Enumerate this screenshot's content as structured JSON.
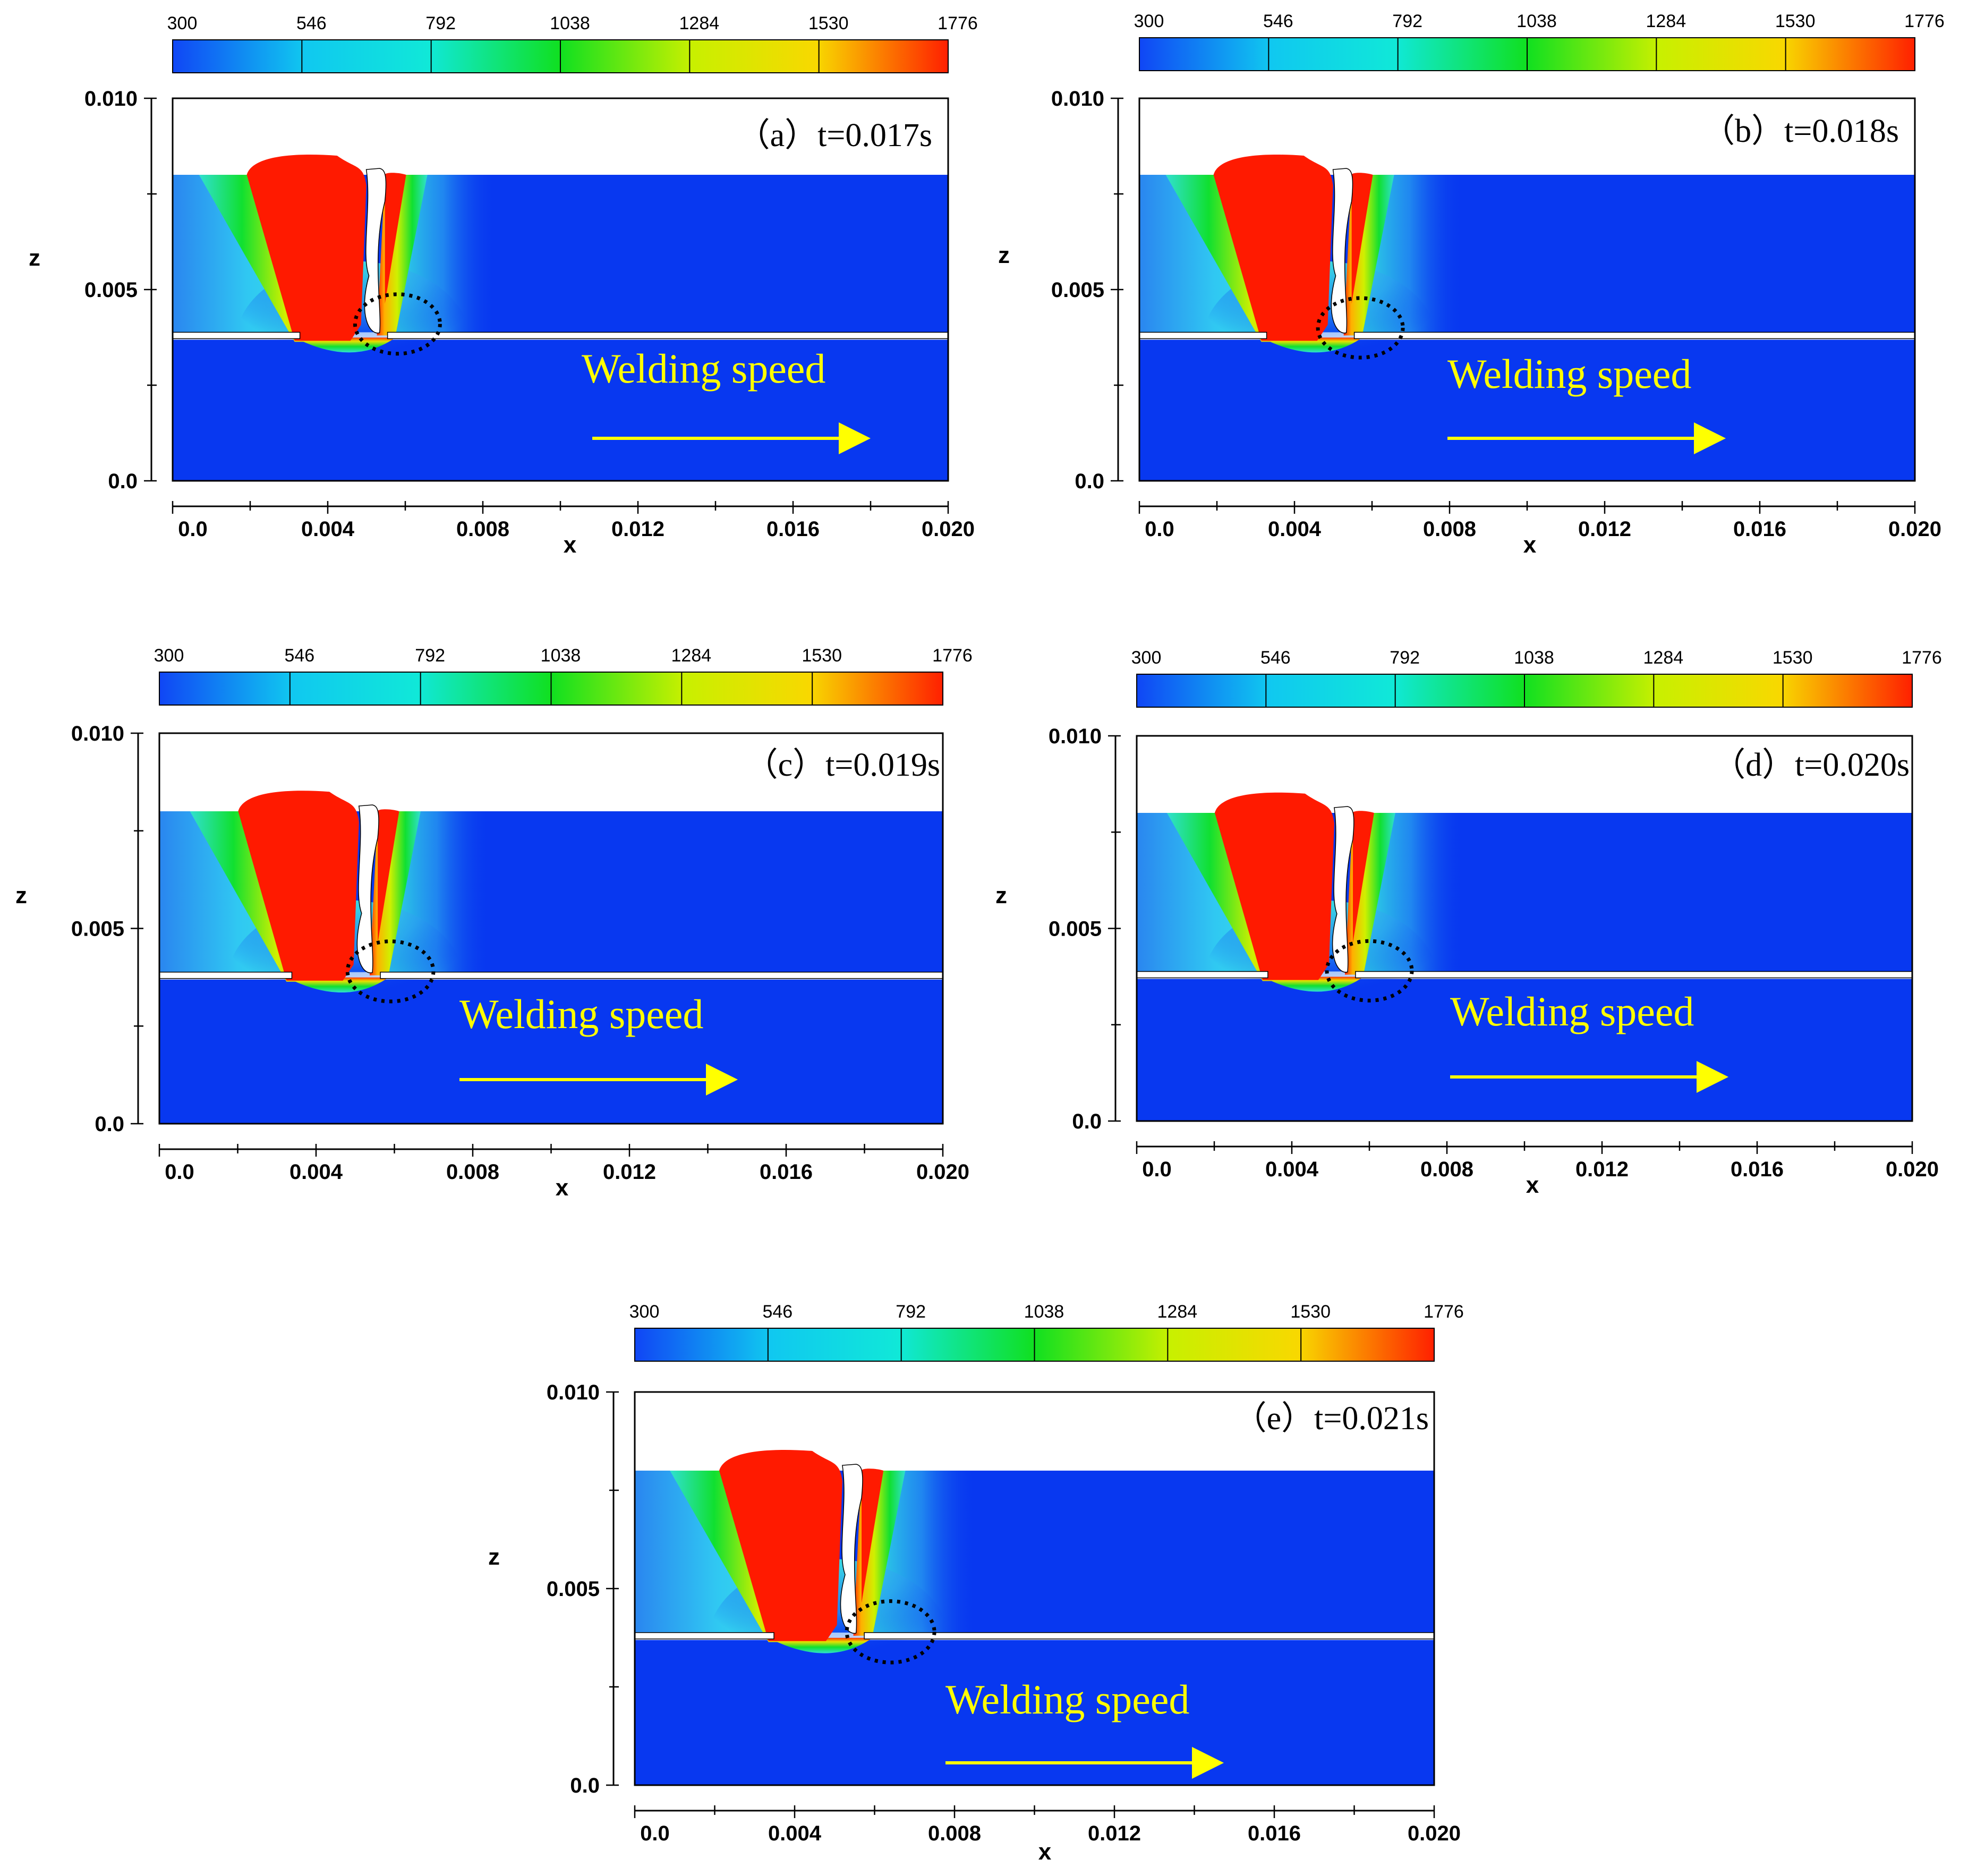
{
  "figure": {
    "description_free": true
  },
  "chart_data": [
    {
      "type": "heatmap",
      "panel_label": "（a）t=0.017s",
      "time_s": 0.017,
      "xlabel": "x",
      "ylabel": "z",
      "xlim": [
        0.0,
        0.02
      ],
      "ylim": [
        0.0,
        0.01
      ],
      "x_tick_labels": [
        "0.0",
        "0.004",
        "0.008",
        "0.012",
        "0.016",
        "0.020"
      ],
      "y_tick_labels": [
        "0.0",
        "0.005",
        "0.010"
      ],
      "colorbar": {
        "min": 300,
        "max": 1776,
        "tick_labels": [
          "300",
          "546",
          "792",
          "1038",
          "1284",
          "1530",
          "1776"
        ]
      },
      "annotation": "Welding speed",
      "plate_top_z": 0.008,
      "gap_z": 0.0038,
      "keyhole_x": 0.0052,
      "pool_top_z": 0.0085,
      "highlight_center": [
        0.0058,
        0.0041
      ]
    },
    {
      "type": "heatmap",
      "panel_label": "（b）t=0.018s",
      "time_s": 0.018,
      "xlabel": "x",
      "ylabel": "z",
      "xlim": [
        0.0,
        0.02
      ],
      "ylim": [
        0.0,
        0.01
      ],
      "x_tick_labels": [
        "0.0",
        "0.004",
        "0.008",
        "0.012",
        "0.016",
        "0.020"
      ],
      "y_tick_labels": [
        "0.0",
        "0.005",
        "0.010"
      ],
      "colorbar": {
        "min": 300,
        "max": 1776,
        "tick_labels": [
          "300",
          "546",
          "792",
          "1038",
          "1284",
          "1530",
          "1776"
        ]
      },
      "annotation": "Welding speed",
      "plate_top_z": 0.008,
      "gap_z": 0.0038,
      "keyhole_x": 0.0052,
      "pool_top_z": 0.0085,
      "highlight_center": [
        0.0057,
        0.004
      ]
    },
    {
      "type": "heatmap",
      "panel_label": "（c）t=0.019s",
      "time_s": 0.019,
      "xlabel": "x",
      "ylabel": "z",
      "xlim": [
        0.0,
        0.02
      ],
      "ylim": [
        0.0,
        0.01
      ],
      "x_tick_labels": [
        "0.0",
        "0.004",
        "0.008",
        "0.012",
        "0.016",
        "0.020"
      ],
      "y_tick_labels": [
        "0.0",
        "0.005",
        "0.010"
      ],
      "colorbar": {
        "min": 300,
        "max": 1776,
        "tick_labels": [
          "300",
          "546",
          "792",
          "1038",
          "1284",
          "1530",
          "1776"
        ]
      },
      "annotation": "Welding speed",
      "plate_top_z": 0.008,
      "gap_z": 0.0038,
      "keyhole_x": 0.0053,
      "pool_top_z": 0.0085,
      "highlight_center": [
        0.0059,
        0.0039
      ]
    },
    {
      "type": "heatmap",
      "panel_label": "（d）t=0.020s",
      "time_s": 0.02,
      "xlabel": "x",
      "ylabel": "z",
      "xlim": [
        0.0,
        0.02
      ],
      "ylim": [
        0.0,
        0.01
      ],
      "x_tick_labels": [
        "0.0",
        "0.004",
        "0.008",
        "0.012",
        "0.016",
        "0.020"
      ],
      "y_tick_labels": [
        "0.0",
        "0.005",
        "0.010"
      ],
      "colorbar": {
        "min": 300,
        "max": 1776,
        "tick_labels": [
          "300",
          "546",
          "792",
          "1038",
          "1284",
          "1530",
          "1776"
        ]
      },
      "annotation": "Welding speed",
      "plate_top_z": 0.008,
      "gap_z": 0.0038,
      "keyhole_x": 0.0053,
      "pool_top_z": 0.0085,
      "highlight_center": [
        0.006,
        0.0039
      ]
    },
    {
      "type": "heatmap",
      "panel_label": "（e）t=0.021s",
      "time_s": 0.021,
      "xlabel": "x",
      "ylabel": "z",
      "xlim": [
        0.0,
        0.02
      ],
      "ylim": [
        0.0,
        0.01
      ],
      "x_tick_labels": [
        "0.0",
        "0.004",
        "0.008",
        "0.012",
        "0.016",
        "0.020"
      ],
      "y_tick_labels": [
        "0.0",
        "0.005",
        "0.010"
      ],
      "colorbar": {
        "min": 300,
        "max": 1776,
        "tick_labels": [
          "300",
          "546",
          "792",
          "1038",
          "1284",
          "1530",
          "1776"
        ]
      },
      "annotation": "Welding speed",
      "plate_top_z": 0.008,
      "gap_z": 0.0038,
      "keyhole_x": 0.0054,
      "pool_top_z": 0.0085,
      "highlight_center": [
        0.0064,
        0.0039
      ]
    }
  ],
  "colors": {
    "cold": "#0838f0",
    "hot": "#ff1a00",
    "annotation": "#ffff00",
    "highlight": "#000000"
  }
}
